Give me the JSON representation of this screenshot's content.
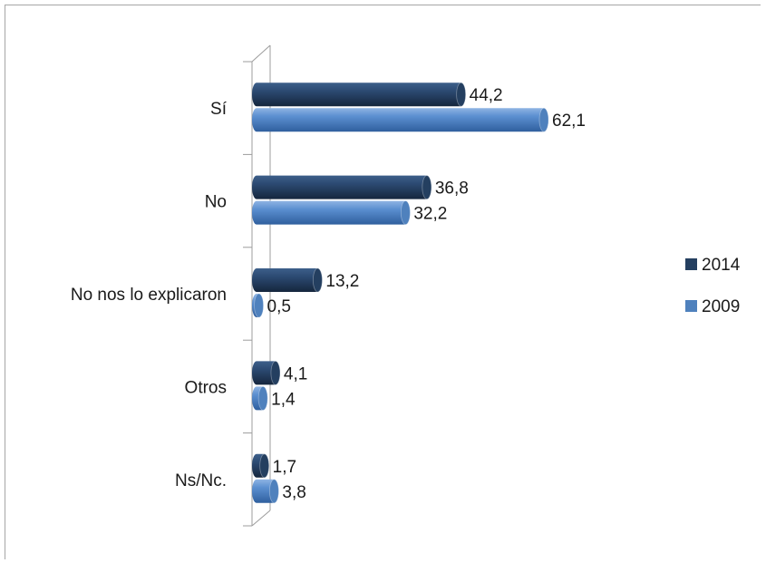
{
  "chart_data": {
    "type": "bar",
    "orientation": "horizontal",
    "style": "3d-cylinder",
    "categories": [
      "Sí",
      "No",
      "No nos lo explicaron",
      "Otros",
      "Ns/Nc."
    ],
    "series": [
      {
        "name": "2014",
        "color": "#243f60",
        "values": [
          44.2,
          36.8,
          13.2,
          4.1,
          1.7
        ],
        "labels": [
          "44,2",
          "36,8",
          "13,2",
          "4,1",
          "1,7"
        ]
      },
      {
        "name": "2009",
        "color": "#4f81bd",
        "values": [
          62.1,
          32.2,
          0.5,
          1.4,
          3.8
        ],
        "labels": [
          "62,1",
          "32,2",
          "0,5",
          "1,4",
          "3,8"
        ]
      }
    ],
    "xlim": [
      0,
      62.1
    ],
    "legend_position": "right",
    "grid": false
  }
}
